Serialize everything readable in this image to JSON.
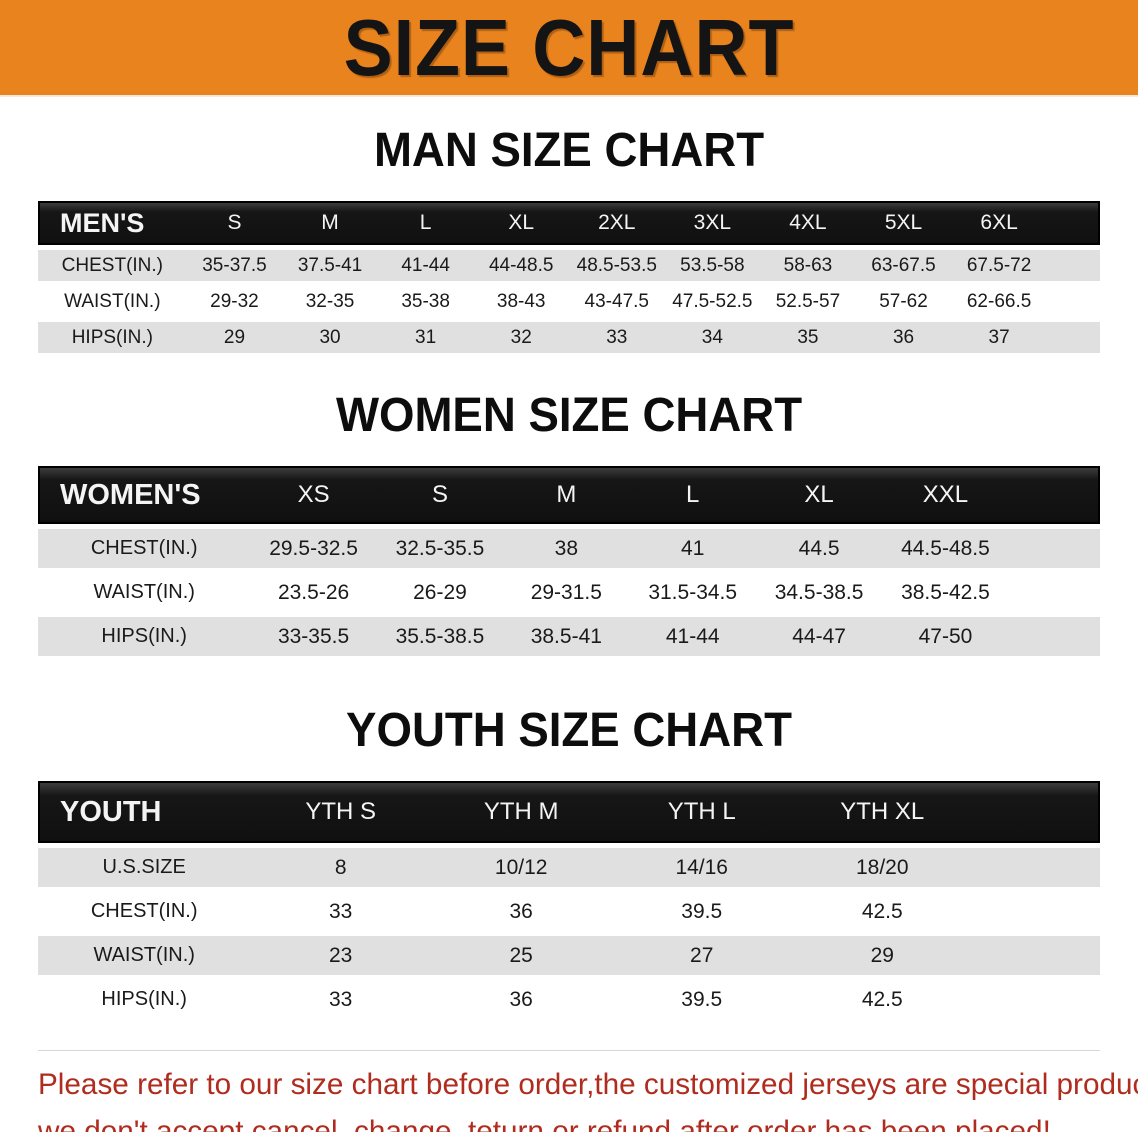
{
  "banner": {
    "title": "SIZE CHART",
    "bg_color": "#E8831E"
  },
  "sections": [
    {
      "heading": "MAN SIZE CHART",
      "table": {
        "label": "MEN'S",
        "columns": [
          "S",
          "M",
          "L",
          "XL",
          "2XL",
          "3XL",
          "4XL",
          "5XL",
          "6XL"
        ],
        "rows": [
          {
            "label": "CHEST(IN.)",
            "values": [
              "35-37.5",
              "37.5-41",
              "41-44",
              "44-48.5",
              "48.5-53.5",
              "53.5-58",
              "58-63",
              "63-67.5",
              "67.5-72"
            ]
          },
          {
            "label": "WAIST(IN.)",
            "values": [
              "29-32",
              "32-35",
              "35-38",
              "38-43",
              "43-47.5",
              "47.5-52.5",
              "52.5-57",
              "57-62",
              "62-66.5"
            ]
          },
          {
            "label": "HIPS(IN.)",
            "values": [
              "29",
              "30",
              "31",
              "32",
              "33",
              "34",
              "35",
              "36",
              "37"
            ]
          }
        ]
      }
    },
    {
      "heading": "WOMEN SIZE CHART",
      "table": {
        "label": "WOMEN'S",
        "columns": [
          "XS",
          "S",
          "M",
          "L",
          "XL",
          "XXL"
        ],
        "rows": [
          {
            "label": "CHEST(IN.)",
            "values": [
              "29.5-32.5",
              "32.5-35.5",
              "38",
              "41",
              "44.5",
              "44.5-48.5"
            ]
          },
          {
            "label": "WAIST(IN.)",
            "values": [
              "23.5-26",
              "26-29",
              "29-31.5",
              "31.5-34.5",
              "34.5-38.5",
              "38.5-42.5"
            ]
          },
          {
            "label": "HIPS(IN.)",
            "values": [
              "33-35.5",
              "35.5-38.5",
              "38.5-41",
              "41-44",
              "44-47",
              "47-50"
            ]
          }
        ]
      }
    },
    {
      "heading": "YOUTH SIZE CHART",
      "table": {
        "label": "YOUTH",
        "columns": [
          "YTH S",
          "YTH M",
          "YTH L",
          "YTH XL"
        ],
        "rows": [
          {
            "label": "U.S.SIZE",
            "values": [
              "8",
              "10/12",
              "14/16",
              "18/20"
            ]
          },
          {
            "label": "CHEST(IN.)",
            "values": [
              "33",
              "36",
              "39.5",
              "42.5"
            ]
          },
          {
            "label": "WAIST(IN.)",
            "values": [
              "23",
              "25",
              "27",
              "29"
            ]
          },
          {
            "label": "HIPS(IN.)",
            "values": [
              "33",
              "36",
              "39.5",
              "42.5"
            ]
          }
        ]
      }
    }
  ],
  "footer": {
    "text_color": "#AF2C1F",
    "lines": [
      "Please refer to our size chart before order,the customized jerseys are special products,",
      "we don't accept cancel, change, teturn or refund after order has been placed!"
    ]
  }
}
